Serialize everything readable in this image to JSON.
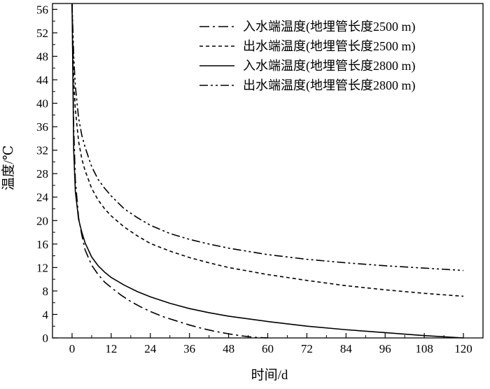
{
  "chart_data": {
    "type": "line",
    "title": "",
    "xlabel": "时间/d",
    "ylabel": "温度/℃",
    "xlim": [
      -6,
      126
    ],
    "ylim": [
      0,
      57
    ],
    "xticks": [
      0,
      12,
      24,
      36,
      48,
      60,
      72,
      84,
      96,
      108,
      120
    ],
    "yticks": [
      0,
      4,
      8,
      12,
      16,
      20,
      24,
      28,
      32,
      36,
      40,
      44,
      48,
      52,
      56
    ],
    "grid": false,
    "legend_position": "top-right",
    "series": [
      {
        "name": "入水端温度(地埋管长度2500 m)",
        "line_style": "dash-dot",
        "color": "#000000",
        "x": [
          0,
          0.5,
          1,
          2,
          3,
          4,
          6,
          8,
          10,
          12,
          15,
          18,
          21,
          24,
          28,
          32,
          36,
          40,
          44,
          48,
          52,
          56,
          60
        ],
        "y": [
          57,
          36,
          27,
          20.5,
          17.5,
          15,
          12.4,
          10.8,
          9.5,
          8.6,
          7.3,
          6.2,
          5.3,
          4.5,
          3.6,
          2.9,
          2.2,
          1.6,
          1.1,
          0.7,
          0.35,
          0.1,
          0
        ]
      },
      {
        "name": "出水端温度(地埋管长度2500 m)",
        "line_style": "dashed",
        "color": "#000000",
        "x": [
          0,
          0.5,
          1,
          2,
          3,
          4,
          6,
          8,
          10,
          12,
          16,
          20,
          24,
          30,
          36,
          42,
          48,
          60,
          72,
          84,
          96,
          108,
          120
        ],
        "y": [
          57,
          44,
          39,
          33.5,
          30.5,
          28.5,
          25.5,
          23.5,
          22,
          20.8,
          18.9,
          17.4,
          16.1,
          14.8,
          13.7,
          12.8,
          12,
          10.8,
          9.8,
          8.9,
          8.2,
          7.6,
          7.1
        ]
      },
      {
        "name": "入水端温度(地埋管长度2800 m)",
        "line_style": "solid",
        "color": "#000000",
        "x": [
          0,
          0.5,
          1,
          2,
          3,
          4,
          6,
          8,
          10,
          12,
          16,
          20,
          24,
          30,
          36,
          42,
          48,
          60,
          72,
          84,
          96,
          108,
          120
        ],
        "y": [
          57,
          32,
          25,
          20.2,
          18,
          16.2,
          13.8,
          12.3,
          11.2,
          10.3,
          9,
          7.9,
          7,
          5.9,
          5,
          4.3,
          3.7,
          2.8,
          2,
          1.4,
          0.9,
          0.4,
          0
        ]
      },
      {
        "name": "出水端温度(地埋管长度2800 m)",
        "line_style": "dash-dot-dot",
        "color": "#000000",
        "x": [
          0,
          0.5,
          1,
          2,
          3,
          4,
          6,
          8,
          10,
          12,
          16,
          20,
          24,
          30,
          36,
          42,
          48,
          60,
          72,
          84,
          96,
          108,
          120
        ],
        "y": [
          57,
          48,
          43,
          37.5,
          34.5,
          32.5,
          29.2,
          27,
          25.5,
          24.2,
          22,
          20.5,
          19.2,
          17.8,
          16.8,
          16,
          15.3,
          14.2,
          13.4,
          12.8,
          12.3,
          11.9,
          11.5
        ]
      }
    ]
  }
}
